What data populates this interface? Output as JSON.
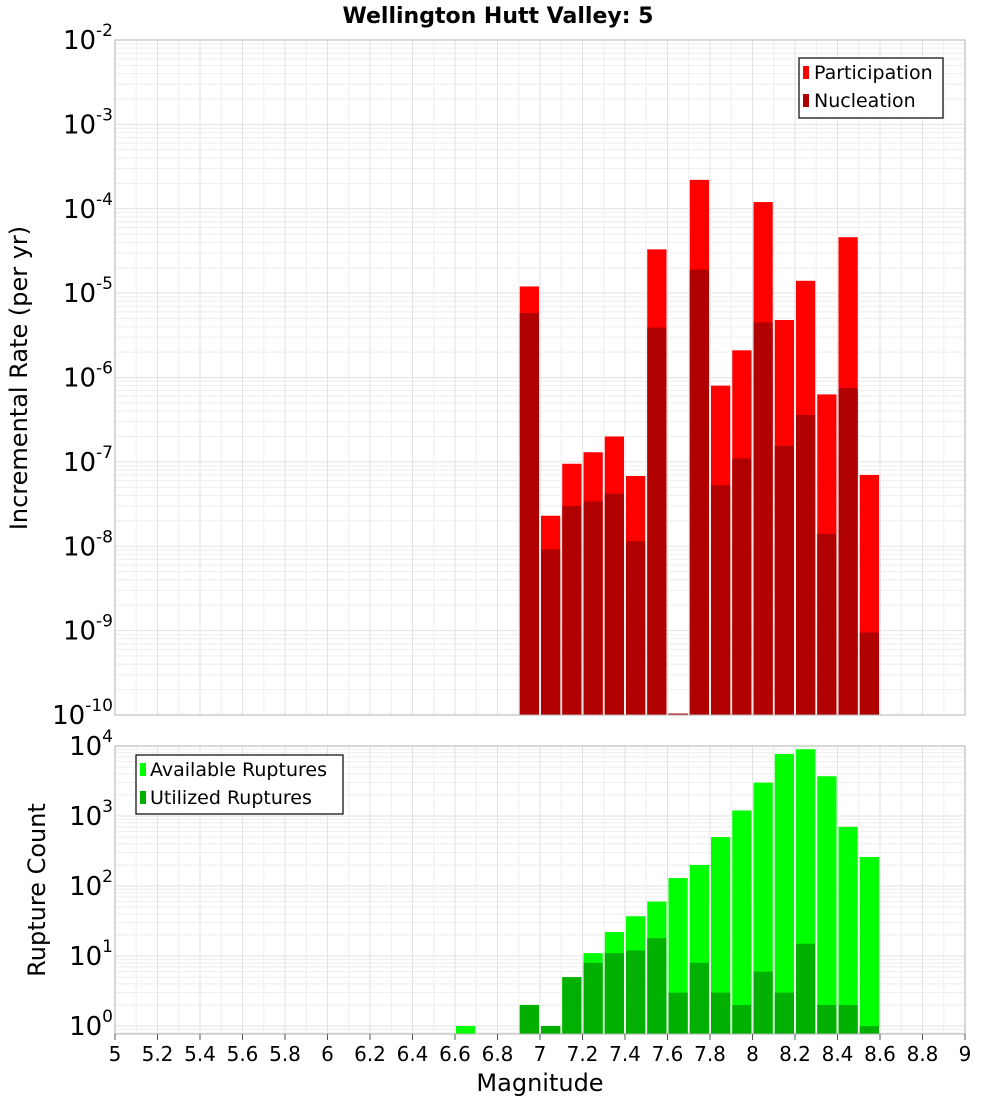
{
  "chart_data": [
    {
      "type": "bar",
      "title": "Wellington Hutt Valley: 5",
      "ylabel": "Incremental Rate (per yr)",
      "xlabel": "",
      "y_scale": "log",
      "ylim": [
        1e-10,
        0.01
      ],
      "y_tick_bases": [
        "10",
        "10",
        "10",
        "10",
        "10",
        "10",
        "10",
        "10",
        "10"
      ],
      "y_tick_exps": [
        "-10",
        "-9",
        "-8",
        "-7",
        "-6",
        "-5",
        "-4",
        "-3",
        "-2"
      ],
      "xlim": [
        5,
        9
      ],
      "grid": true,
      "legend_position": "top-right",
      "bar_width": 0.1,
      "series": [
        {
          "name": "Participation",
          "color": "#ff0000",
          "x": [
            6.95,
            7.05,
            7.15,
            7.25,
            7.35,
            7.45,
            7.55,
            7.65,
            7.75,
            7.85,
            7.95,
            8.05,
            8.15,
            8.25,
            8.35,
            8.45,
            8.55
          ],
          "values": [
            1.2e-05,
            2.3e-08,
            9.5e-08,
            1.3e-07,
            2e-07,
            6.8e-08,
            3.3e-05,
            1e-10,
            0.00022,
            8e-07,
            2.1e-06,
            0.00012,
            4.8e-06,
            1.4e-05,
            6.3e-07,
            4.6e-05,
            7e-08
          ]
        },
        {
          "name": "Nucleation",
          "color": "#b00000",
          "x": [
            6.95,
            7.05,
            7.15,
            7.25,
            7.35,
            7.45,
            7.55,
            7.65,
            7.75,
            7.85,
            7.95,
            8.05,
            8.15,
            8.25,
            8.35,
            8.45,
            8.55
          ],
          "values": [
            5.8e-06,
            9.2e-09,
            3e-08,
            3.4e-08,
            4.2e-08,
            1.15e-08,
            3.9e-06,
            1e-10,
            1.9e-05,
            5.3e-08,
            1.1e-07,
            4.5e-06,
            1.55e-07,
            3.6e-07,
            1.4e-08,
            7.5e-07,
            9.5e-10
          ]
        }
      ]
    },
    {
      "type": "bar",
      "title": "",
      "ylabel": "Rupture Count",
      "xlabel": "Magnitude",
      "y_scale": "log",
      "ylim": [
        0.77,
        10000
      ],
      "y_tick_bases": [
        "10",
        "10",
        "10",
        "10",
        "10"
      ],
      "y_tick_exps": [
        "0",
        "1",
        "2",
        "3",
        "4"
      ],
      "xlim": [
        5,
        9
      ],
      "x_tick_labels": [
        "5",
        "5.2",
        "5.4",
        "5.6",
        "5.8",
        "6",
        "6.2",
        "6.4",
        "6.6",
        "6.8",
        "7",
        "7.2",
        "7.4",
        "7.6",
        "7.8",
        "8",
        "8.2",
        "8.4",
        "8.6",
        "8.8",
        "9"
      ],
      "grid": true,
      "legend_position": "top-left",
      "bar_width": 0.1,
      "series": [
        {
          "name": "Available Ruptures",
          "color": "#00ff00",
          "x": [
            6.65,
            6.95,
            7.05,
            7.15,
            7.25,
            7.35,
            7.45,
            7.55,
            7.65,
            7.75,
            7.85,
            7.95,
            8.05,
            8.15,
            8.25,
            8.35,
            8.45,
            8.55
          ],
          "values": [
            1,
            2,
            1,
            5,
            11,
            22,
            37,
            60,
            130,
            200,
            500,
            1200,
            3000,
            7700,
            9000,
            3700,
            700,
            260
          ]
        },
        {
          "name": "Utilized Ruptures",
          "color": "#00b000",
          "x": [
            6.95,
            7.05,
            7.15,
            7.25,
            7.35,
            7.45,
            7.55,
            7.65,
            7.75,
            7.85,
            7.95,
            8.05,
            8.15,
            8.25,
            8.35,
            8.45,
            8.55
          ],
          "values": [
            2,
            1,
            5,
            8,
            11,
            12,
            18,
            3,
            8,
            3,
            2,
            6,
            3,
            15,
            2,
            2,
            1
          ]
        }
      ]
    }
  ]
}
